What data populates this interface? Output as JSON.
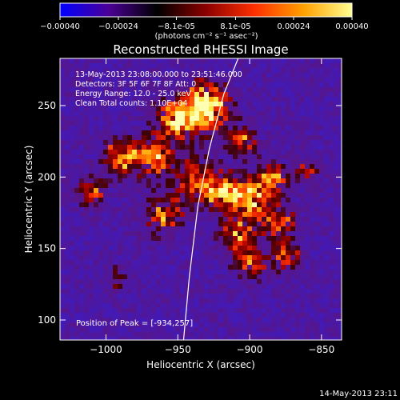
{
  "chart_data": {
    "type": "heatmap",
    "title": "Reconstructed RHESSI Image",
    "xlabel": "Heliocentric X (arcsec)",
    "ylabel": "Heliocentric Y (arcsec)",
    "xlim": [
      -1032,
      -836
    ],
    "ylim": [
      86,
      283
    ],
    "x_ticks": [
      -1000,
      -950,
      -900,
      -850
    ],
    "x_tick_labels": [
      "−1000",
      "−950",
      "−900",
      "−850"
    ],
    "y_ticks": [
      100,
      150,
      200,
      250
    ],
    "y_tick_labels": [
      "100",
      "150",
      "200",
      "250"
    ],
    "colorbar": {
      "range": [
        -0.0004,
        0.0004
      ],
      "ticks": [
        -0.0004,
        -0.00024,
        -8.1e-05,
        8.1e-05,
        0.00024,
        0.0004
      ],
      "tick_labels": [
        "−0.00040",
        "−0.00024",
        "−8.1e-05",
        "8.1e-05",
        "0.00024",
        "0.00040"
      ],
      "unit_label": "(photons cm⁻² s⁻¹ asec⁻²)",
      "colormap": [
        "#0000ff",
        "#4b0096",
        "#000000",
        "#8b0000",
        "#ff3000",
        "#ffa000",
        "#ffff90"
      ]
    },
    "info_lines": [
      "13-May-2013 23:08:00.000 to 23:51:46.000",
      "Detectors: 3F 5F 6F 7F 8F  Att: 0",
      "Energy Range: 12.0 - 25.0 keV",
      "Clean    Total counts: 1.10E+04"
    ],
    "peak_label": "Position of Peak = [-934,257]",
    "peak_position": [
      -934,
      257
    ],
    "limb_curve": {
      "x": [
        -946,
        -942,
        -936,
        -928,
        -918,
        -908
      ],
      "y": [
        86,
        130,
        180,
        220,
        258,
        283
      ]
    },
    "bright_regions": [
      {
        "x": -930,
        "y": 250,
        "intensity": 0.95,
        "spread": 16
      },
      {
        "x": -950,
        "y": 240,
        "intensity": 0.85,
        "spread": 14
      },
      {
        "x": -968,
        "y": 215,
        "intensity": 0.75,
        "spread": 13
      },
      {
        "x": -990,
        "y": 215,
        "intensity": 0.7,
        "spread": 12
      },
      {
        "x": -1010,
        "y": 190,
        "intensity": 0.55,
        "spread": 10
      },
      {
        "x": -960,
        "y": 175,
        "intensity": 0.6,
        "spread": 14
      },
      {
        "x": -940,
        "y": 200,
        "intensity": 0.55,
        "spread": 14
      },
      {
        "x": -920,
        "y": 190,
        "intensity": 0.8,
        "spread": 13
      },
      {
        "x": -900,
        "y": 185,
        "intensity": 0.85,
        "spread": 13
      },
      {
        "x": -885,
        "y": 200,
        "intensity": 0.7,
        "spread": 10
      },
      {
        "x": -880,
        "y": 168,
        "intensity": 0.65,
        "spread": 12
      },
      {
        "x": -910,
        "y": 160,
        "intensity": 0.65,
        "spread": 12
      },
      {
        "x": -900,
        "y": 140,
        "intensity": 0.55,
        "spread": 11
      },
      {
        "x": -875,
        "y": 145,
        "intensity": 0.5,
        "spread": 10
      },
      {
        "x": -860,
        "y": 205,
        "intensity": 0.45,
        "spread": 8
      },
      {
        "x": -995,
        "y": 130,
        "intensity": 0.35,
        "spread": 8
      },
      {
        "x": -905,
        "y": 225,
        "intensity": 0.55,
        "spread": 10
      }
    ]
  },
  "footer": {
    "timestamp": "14-May-2013 23:11"
  }
}
